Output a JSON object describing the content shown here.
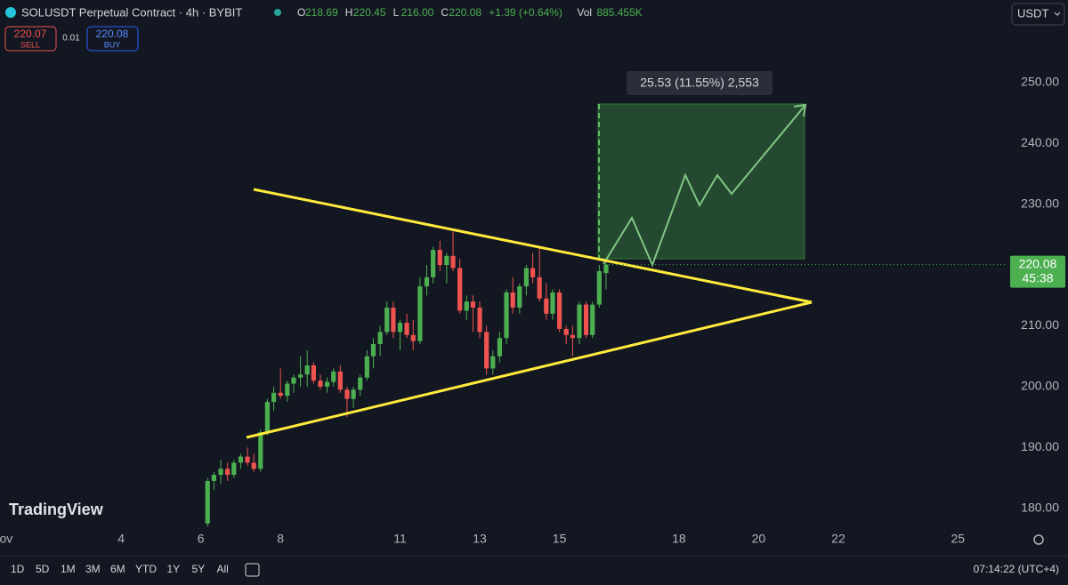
{
  "header": {
    "symbol": "SOLUSDT Perpetual Contract · 4h · BYBIT",
    "ohlc": [
      {
        "key": "O",
        "value": "218.69"
      },
      {
        "key": "H",
        "value": "220.45"
      },
      {
        "key": "L",
        "value": "216.00"
      },
      {
        "key": "C",
        "value": "220.08"
      }
    ],
    "change": "+1.39 (+0.64%)",
    "volume_key": "Vol",
    "volume": "885.455K",
    "sell_price": "220.07",
    "sell_label": "SELL",
    "spread": "0.01",
    "buy_price": "220.08",
    "buy_label": "BUY",
    "currency": "USDT"
  },
  "chart_data": {
    "type": "candlestick",
    "up_color": "#4caf50",
    "down_color": "#ef5350",
    "x": [
      6.17,
      6.33,
      6.5,
      6.67,
      6.83,
      7.0,
      7.17,
      7.33,
      7.5,
      7.67,
      7.83,
      8.0,
      8.17,
      8.33,
      8.5,
      8.67,
      8.83,
      9.0,
      9.17,
      9.33,
      9.5,
      9.67,
      9.83,
      10.0,
      10.17,
      10.33,
      10.5,
      10.67,
      10.83,
      11.0,
      11.17,
      11.33,
      11.5,
      11.67,
      11.83,
      12.0,
      12.17,
      12.33,
      12.5,
      12.67,
      12.83,
      13.0,
      13.17,
      13.33,
      13.5,
      13.67,
      13.83,
      14.0,
      14.17,
      14.33,
      14.5,
      14.67,
      14.83,
      15.0,
      15.17,
      15.33,
      15.5,
      15.67,
      15.83,
      16.0,
      16.17
    ],
    "open": [
      177.5,
      184.5,
      185.5,
      186.5,
      185.5,
      187.5,
      188.5,
      187.5,
      186.5,
      192.5,
      197.5,
      199,
      198.5,
      200.5,
      201.5,
      202,
      203.5,
      201,
      200,
      200.8,
      202.5,
      199.5,
      198,
      199.5,
      201.5,
      205,
      207,
      209,
      213,
      209,
      210.5,
      208.5,
      207.5,
      216.5,
      218,
      222.5,
      220,
      221.5,
      219.5,
      212.5,
      214,
      213,
      209,
      203,
      205,
      208,
      215.5,
      213,
      216.5,
      219.5,
      218,
      214.5,
      212,
      215.5,
      209.5,
      208.5,
      208,
      213.5,
      208.5,
      213.5,
      218.69
    ],
    "high": [
      185,
      186,
      188,
      187.5,
      188,
      189,
      190,
      189,
      193,
      198,
      200,
      203,
      201,
      202,
      205,
      206,
      204,
      202,
      201.5,
      203,
      203.5,
      200,
      200,
      202,
      206,
      208,
      210,
      214,
      214,
      211,
      212,
      211,
      218,
      220,
      223,
      224,
      222,
      225.5,
      221,
      215,
      215,
      214,
      210,
      206,
      209,
      216,
      218,
      217,
      220,
      222,
      223,
      217,
      216,
      216,
      210,
      210,
      214,
      214,
      214,
      220,
      220.45
    ],
    "low": [
      177,
      183,
      184,
      184.5,
      185,
      186.5,
      187,
      186,
      186,
      192,
      196,
      198,
      197.5,
      199,
      200,
      200,
      200.5,
      199.5,
      199,
      200,
      199,
      195,
      196.5,
      198.5,
      201,
      203,
      205,
      208.5,
      208,
      206,
      208,
      206,
      207,
      215,
      217,
      219,
      217,
      219,
      212,
      211,
      209,
      208,
      202,
      202,
      204,
      207,
      212,
      212,
      215,
      217,
      214,
      211,
      211,
      209,
      207,
      205,
      207,
      208,
      208,
      213,
      216
    ],
    "close": [
      184.5,
      185.5,
      186.5,
      185.5,
      187.5,
      188.5,
      187.5,
      186.5,
      192.5,
      197.5,
      199,
      198.5,
      200.5,
      201.5,
      202,
      203.5,
      201,
      200,
      200.8,
      202.5,
      199.5,
      198,
      199.5,
      201.5,
      205,
      207,
      209,
      213,
      209,
      210.5,
      208.5,
      207.5,
      216.5,
      218,
      222.5,
      220,
      221.5,
      219.5,
      212.5,
      214,
      213,
      209,
      203,
      205,
      208,
      215.5,
      213,
      216.5,
      219.5,
      218,
      214.5,
      212,
      215.5,
      209.5,
      208.5,
      208,
      213.5,
      208.5,
      213.5,
      219,
      220.08
    ],
    "xlim": [
      0.96,
      26.2
    ],
    "xticks": [
      {
        "value": 1,
        "label": "Nov"
      },
      4,
      6,
      8,
      11,
      13,
      15,
      18,
      20,
      22,
      25
    ],
    "ylim": [
      176.6,
      259.2
    ],
    "yticks": [
      {
        "value": 180,
        "label": "180.00"
      },
      {
        "value": 190,
        "label": "190.00"
      },
      {
        "value": 200,
        "label": "200.00"
      },
      {
        "value": 210,
        "label": "210.00"
      },
      {
        "value": 220,
        "label": "220.00"
      },
      {
        "value": 230,
        "label": "230.00"
      },
      {
        "value": 240,
        "label": "240.00"
      },
      {
        "value": 250,
        "label": "250.00"
      }
    ],
    "grid": false,
    "last_price": {
      "value": 220.08,
      "label": "220.08",
      "countdown": "45:38"
    },
    "annotation": "25.53 (11.55%) 2,553",
    "watermark": "TradingView"
  },
  "toolbar": {
    "ranges": [
      "1D",
      "5D",
      "1M",
      "3M",
      "6M",
      "YTD",
      "1Y",
      "5Y",
      "All"
    ],
    "clock": "07:14:22 (UTC+4)"
  }
}
